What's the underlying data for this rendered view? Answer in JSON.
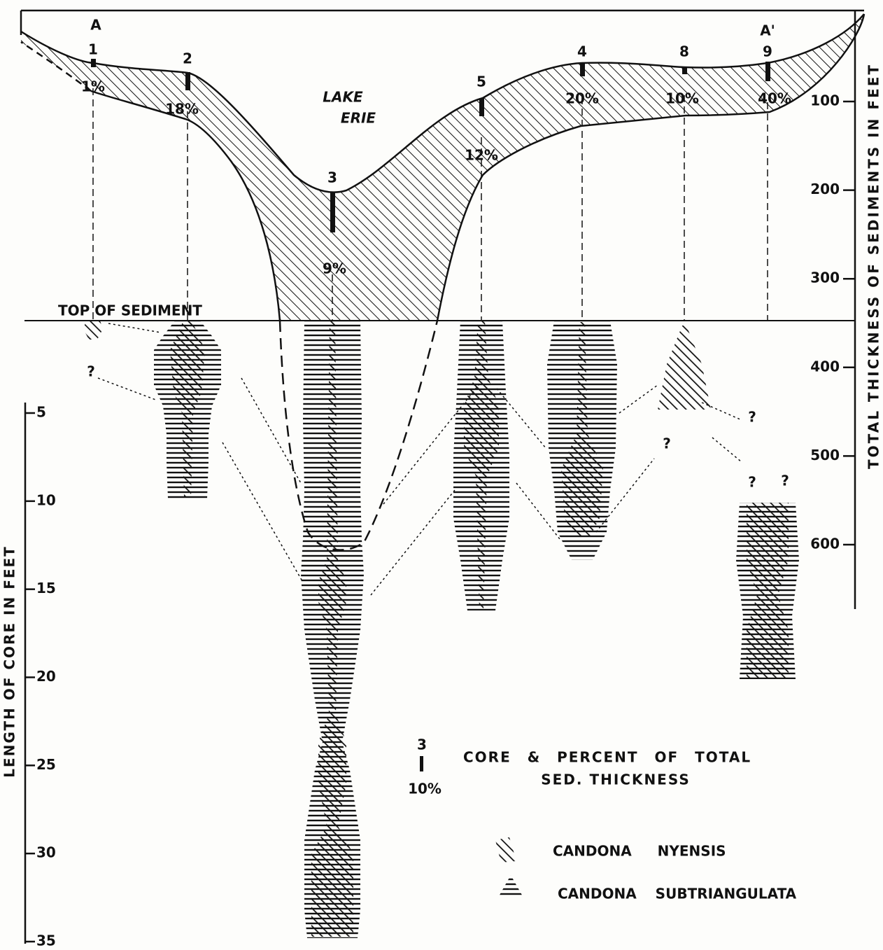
{
  "section_labels": {
    "start": "A",
    "end": "A'"
  },
  "lake_label": [
    "LAKE",
    "ERIE"
  ],
  "top_of_sediment": "TOP OF SEDIMENT",
  "cores": [
    {
      "id": "1",
      "percent": "1%"
    },
    {
      "id": "2",
      "percent": "18%"
    },
    {
      "id": "3",
      "percent": "9%"
    },
    {
      "id": "5",
      "percent": "12%"
    },
    {
      "id": "4",
      "percent": "20%"
    },
    {
      "id": "8",
      "percent": "10%"
    },
    {
      "id": "9",
      "percent": "40%"
    }
  ],
  "question_marks": [
    "?",
    "?",
    "?",
    "?",
    "?"
  ],
  "right_axis": {
    "title": "TOTAL THICKNESS OF SEDIMENTS IN FEET",
    "ticks": [
      100,
      200,
      300,
      400,
      500,
      600
    ]
  },
  "left_axis": {
    "title": "LENGTH OF CORE IN FEET",
    "ticks": [
      5,
      10,
      15,
      20,
      25,
      30,
      35
    ]
  },
  "legend": {
    "core_example": {
      "id": "3",
      "percent": "10%"
    },
    "core_text": [
      "CORE & PERCENT OF TOTAL",
      "SED. THICKNESS"
    ],
    "species": [
      "CANDONA NYENSIS",
      "CANDONA SUBTRIANGULATA"
    ]
  }
}
